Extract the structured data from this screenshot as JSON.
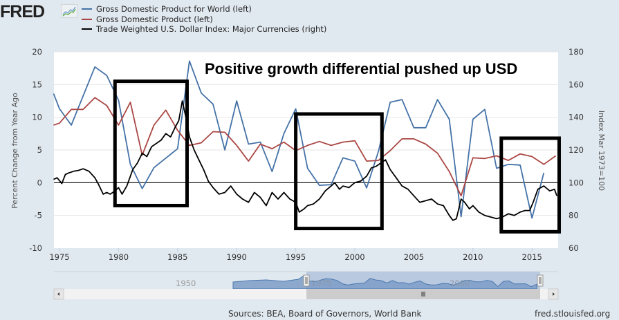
{
  "logo": {
    "text": "FRED",
    "icon": "chart-line-icon"
  },
  "legend": [
    {
      "label": "Gross Domestic Product for World (left)",
      "color": "#4572a7"
    },
    {
      "label": "Gross Domestic Product (left)",
      "color": "#aa4643"
    },
    {
      "label": "Trade Weighted U.S. Dollar Index: Major Currencies (right)",
      "color": "#000000"
    }
  ],
  "footer": {
    "sources": "Sources: BEA, Board of Governors, World Bank",
    "url": "fred.stlouisfed.org"
  },
  "navigator": {
    "labels": [
      "1950",
      "1975",
      "2000"
    ],
    "selected_range": [
      "1974",
      "2017"
    ]
  },
  "chart_data": {
    "type": "line",
    "annotation": "Positive growth differential pushed up USD",
    "highlight_boxes": [
      {
        "x_range": [
          1979.7,
          1985.8
        ],
        "y_range_left": [
          -3.5,
          15.5
        ]
      },
      {
        "x_range": [
          1995.0,
          2002.3
        ],
        "y_range_left": [
          -7,
          10.5
        ]
      },
      {
        "x_range": [
          2012.4,
          2017.3
        ],
        "y_range_left": [
          -7.5,
          6.8
        ]
      }
    ],
    "xlabel": "",
    "ylabel_left": "Percent Change from Year Ago",
    "ylabel_right": "Index Mar 1973=100",
    "xlim": [
      1974.5,
      2017.1
    ],
    "ylim_left": [
      -10,
      20
    ],
    "ylim_right": [
      60,
      180
    ],
    "x_ticks": [
      1975,
      1980,
      1985,
      1990,
      1995,
      2000,
      2005,
      2010,
      2015
    ],
    "y_ticks_left": [
      -10,
      -5,
      0,
      5,
      10,
      15,
      20
    ],
    "y_ticks_right": [
      60,
      80,
      100,
      120,
      140,
      160,
      180
    ],
    "grid": true,
    "legend_position": "top",
    "series": [
      {
        "name": "Gross Domestic Product for World (left)",
        "axis": "left",
        "color": "#4572a7",
        "x": [
          1974.5,
          1975,
          1976,
          1978,
          1979,
          1980,
          1981,
          1982,
          1983,
          1985,
          1986,
          1987,
          1988,
          1989,
          1990,
          1991,
          1992,
          1993,
          1994,
          1995,
          1996,
          1997,
          1998,
          1999,
          2000,
          2001,
          2002,
          2003,
          2004,
          2005,
          2006,
          2007,
          2008,
          2009,
          2010,
          2011,
          2012,
          2013,
          2014,
          2015,
          2016
        ],
        "values": [
          13.6,
          11.3,
          8.8,
          17.7,
          16.4,
          12.6,
          2.8,
          -0.9,
          2.3,
          5.2,
          18.6,
          13.7,
          12.0,
          5.0,
          12.5,
          5.9,
          6.2,
          1.7,
          7.5,
          11.3,
          2.2,
          -0.4,
          -0.3,
          3.8,
          3.3,
          -0.8,
          4.8,
          12.3,
          12.7,
          8.4,
          8.4,
          12.7,
          9.7,
          -5.2,
          9.7,
          11.2,
          2.2,
          2.8,
          2.7,
          -5.4,
          1.5
        ]
      },
      {
        "name": "Gross Domestic Product (left)",
        "axis": "left",
        "color": "#aa4643",
        "x": [
          1974.5,
          1975,
          1976,
          1977,
          1978,
          1979,
          1980,
          1981,
          1982,
          1983,
          1984,
          1985,
          1986,
          1987,
          1988,
          1989,
          1990,
          1991,
          1992,
          1993,
          1994,
          1995,
          1996,
          1997,
          1998,
          1999,
          2000,
          2001,
          2002,
          2003,
          2004,
          2005,
          2006,
          2007,
          2008,
          2009,
          2010,
          2011,
          2012,
          2013,
          2014,
          2015,
          2016,
          2017
        ],
        "values": [
          8.8,
          9.1,
          11.2,
          11.2,
          13.0,
          11.8,
          8.8,
          12.3,
          4.2,
          8.8,
          11.1,
          8.0,
          5.7,
          6.1,
          7.8,
          7.7,
          5.7,
          3.3,
          5.9,
          5.2,
          6.2,
          4.9,
          5.7,
          6.3,
          5.7,
          6.2,
          6.4,
          3.3,
          3.4,
          4.9,
          6.7,
          6.7,
          5.9,
          4.5,
          1.7,
          -2.0,
          3.8,
          3.7,
          4.1,
          3.4,
          4.4,
          4.0,
          2.8,
          4.1
        ]
      },
      {
        "name": "Trade Weighted U.S. Dollar Index: Major Currencies (right)",
        "axis": "right",
        "color": "#000000",
        "x": [
          1974.5,
          1974.8,
          1975.2,
          1975.5,
          1975.8,
          1976.2,
          1976.6,
          1977.0,
          1977.5,
          1978.0,
          1978.3,
          1978.7,
          1979.0,
          1979.3,
          1979.7,
          1980.0,
          1980.3,
          1980.7,
          1981.0,
          1981.2,
          1981.6,
          1982.0,
          1982.4,
          1982.8,
          1983.2,
          1983.6,
          1984.0,
          1984.4,
          1984.8,
          1985.1,
          1985.4,
          1985.7,
          1986.0,
          1986.4,
          1986.8,
          1987.2,
          1987.6,
          1988.0,
          1988.5,
          1989.0,
          1989.5,
          1990.0,
          1990.5,
          1991.0,
          1991.5,
          1992.0,
          1992.5,
          1993.0,
          1993.5,
          1994.0,
          1994.5,
          1995.0,
          1995.3,
          1995.7,
          1996.0,
          1996.5,
          1997.0,
          1997.5,
          1998.0,
          1998.3,
          1998.7,
          1999.0,
          1999.5,
          2000.0,
          2000.5,
          2001.0,
          2001.4,
          2001.8,
          2002.2,
          2002.6,
          2003.0,
          2003.5,
          2004.0,
          2004.5,
          2005.0,
          2005.5,
          2006.0,
          2006.5,
          2007.0,
          2007.5,
          2008.0,
          2008.3,
          2008.6,
          2009.0,
          2009.3,
          2009.7,
          2010.0,
          2010.5,
          2011.0,
          2011.5,
          2012.0,
          2012.5,
          2013.0,
          2013.5,
          2014.0,
          2014.4,
          2014.8,
          2015.1,
          2015.5,
          2016.0,
          2016.5,
          2016.9,
          2017.1
        ],
        "values": [
          102,
          103,
          99.5,
          105,
          106,
          107,
          107.5,
          108.5,
          107,
          103,
          99,
          93,
          94,
          93,
          95,
          97,
          93,
          98,
          104,
          108,
          112,
          118,
          116,
          122,
          124,
          126,
          130,
          128,
          134,
          138,
          150,
          140,
          128,
          120,
          114,
          108,
          101,
          97,
          93,
          94,
          98,
          93,
          90,
          88,
          94,
          91,
          86,
          94,
          90,
          94,
          90,
          88,
          82,
          84,
          86,
          87,
          90,
          95,
          98,
          100,
          96,
          98,
          97,
          100,
          101,
          104,
          109,
          110,
          112,
          114,
          108,
          103,
          98,
          96,
          92,
          88,
          89,
          90,
          87,
          86,
          80,
          77,
          78,
          90,
          88,
          84,
          86,
          82,
          80,
          79,
          78,
          79,
          81,
          80,
          82,
          83,
          83,
          88,
          96,
          98,
          95,
          96,
          92
        ]
      }
    ]
  }
}
